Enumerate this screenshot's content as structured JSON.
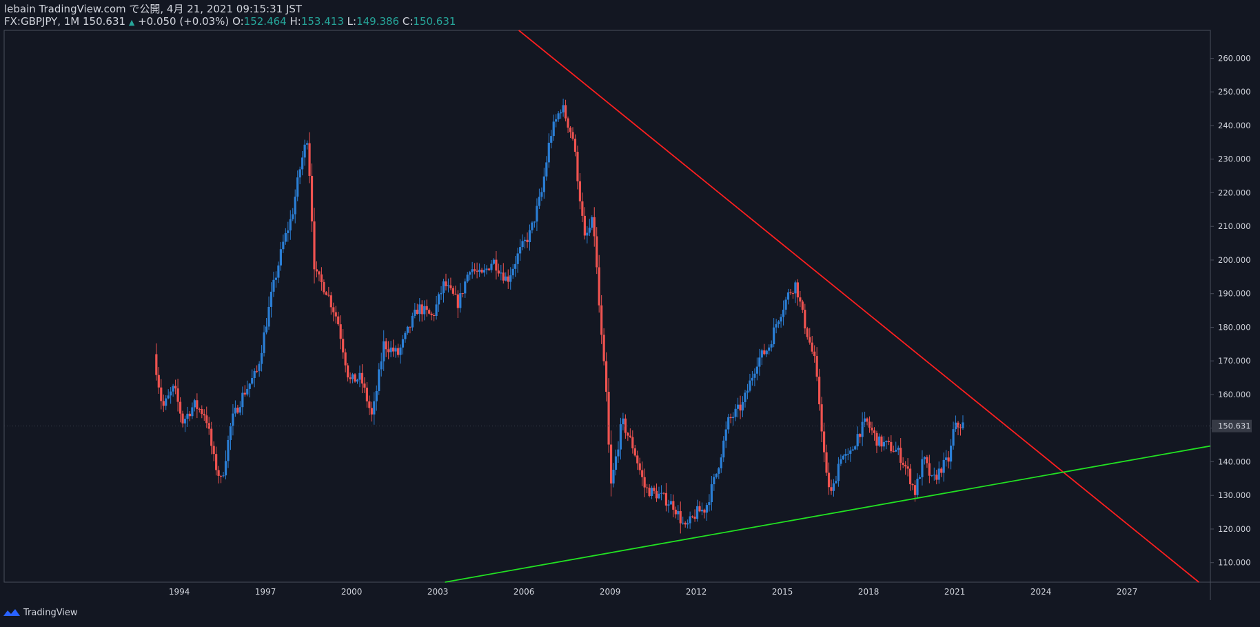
{
  "header": {
    "line1": "lebain TradingView.com で公開, 4月 21, 2021 09:15:31 JST",
    "symbol": "FX:GBPJPY, 1M 150.631",
    "change": "+0.050 (+0.03%)",
    "o_label": "O:",
    "o_value": "152.464",
    "h_label": "H:",
    "h_value": "153.413",
    "l_label": "L:",
    "l_value": "149.386",
    "c_label": "C:",
    "c_value": "150.631"
  },
  "footer": {
    "brand": "TradingView"
  },
  "colors": {
    "background": "#131722",
    "up": "#2b7fd6",
    "down": "#ef5350",
    "resistance": "#ff1f1f",
    "support": "#22e022",
    "price_label_bg": "#363a45"
  },
  "chart_data": {
    "type": "candlestick",
    "interval": "1M",
    "x_unit": "year",
    "xlim": [
      1987.9,
      2029.9
    ],
    "ylim": [
      104.2,
      268.3
    ],
    "x_ticks": [
      {
        "x": 1994,
        "label": "1994"
      },
      {
        "x": 1997,
        "label": "1997"
      },
      {
        "x": 2000,
        "label": "2000"
      },
      {
        "x": 2003,
        "label": "2003"
      },
      {
        "x": 2006,
        "label": "2006"
      },
      {
        "x": 2009,
        "label": "2009"
      },
      {
        "x": 2012,
        "label": "2012"
      },
      {
        "x": 2015,
        "label": "2015"
      },
      {
        "x": 2018,
        "label": "2018"
      },
      {
        "x": 2021,
        "label": "2021"
      },
      {
        "x": 2024,
        "label": "2024"
      },
      {
        "x": 2027,
        "label": "2027"
      }
    ],
    "y_ticks": [
      {
        "y": 110,
        "label": "110.000"
      },
      {
        "y": 120,
        "label": "120.000"
      },
      {
        "y": 130,
        "label": "130.000"
      },
      {
        "y": 140,
        "label": "140.000"
      },
      {
        "y": 150,
        "label": "150.000"
      },
      {
        "y": 160,
        "label": "160.000"
      },
      {
        "y": 170,
        "label": "170.000"
      },
      {
        "y": 180,
        "label": "180.000"
      },
      {
        "y": 190,
        "label": "190.000"
      },
      {
        "y": 200,
        "label": "200.000"
      },
      {
        "y": 210,
        "label": "210.000"
      },
      {
        "y": 220,
        "label": "220.000"
      },
      {
        "y": 230,
        "label": "230.000"
      },
      {
        "y": 240,
        "label": "240.000"
      },
      {
        "y": 250,
        "label": "250.000"
      },
      {
        "y": 260,
        "label": "260.000"
      }
    ],
    "last_price": {
      "value": 150.631,
      "label": "150.631"
    },
    "price_anchors": [
      [
        1993.2,
        172
      ],
      [
        1993.5,
        156
      ],
      [
        1993.9,
        162
      ],
      [
        1994.2,
        152
      ],
      [
        1994.6,
        157
      ],
      [
        1995.0,
        154
      ],
      [
        1995.3,
        140
      ],
      [
        1995.55,
        134
      ],
      [
        1995.9,
        152
      ],
      [
        1996.3,
        160
      ],
      [
        1996.8,
        167
      ],
      [
        1997.3,
        190
      ],
      [
        1997.7,
        205
      ],
      [
        1998.0,
        213
      ],
      [
        1998.3,
        228
      ],
      [
        1998.55,
        237
      ],
      [
        1998.8,
        196
      ],
      [
        1999.2,
        191
      ],
      [
        1999.6,
        182
      ],
      [
        2000.0,
        164
      ],
      [
        2000.4,
        165
      ],
      [
        2000.8,
        153
      ],
      [
        2001.2,
        175
      ],
      [
        2001.7,
        172
      ],
      [
        2002.0,
        178
      ],
      [
        2002.4,
        186
      ],
      [
        2002.9,
        183
      ],
      [
        2003.3,
        193
      ],
      [
        2003.8,
        187
      ],
      [
        2004.2,
        198
      ],
      [
        2004.6,
        195
      ],
      [
        2005.0,
        200
      ],
      [
        2005.5,
        194
      ],
      [
        2005.9,
        202
      ],
      [
        2006.3,
        208
      ],
      [
        2006.7,
        220
      ],
      [
        2007.0,
        237
      ],
      [
        2007.4,
        246
      ],
      [
        2007.8,
        236
      ],
      [
        2008.2,
        206
      ],
      [
        2008.5,
        212
      ],
      [
        2008.75,
        180
      ],
      [
        2008.95,
        160
      ],
      [
        2009.1,
        132
      ],
      [
        2009.5,
        152
      ],
      [
        2009.9,
        144
      ],
      [
        2010.3,
        132
      ],
      [
        2010.8,
        130
      ],
      [
        2011.3,
        127
      ],
      [
        2011.7,
        120
      ],
      [
        2012.1,
        125
      ],
      [
        2012.4,
        126
      ],
      [
        2012.8,
        137
      ],
      [
        2013.2,
        152
      ],
      [
        2013.7,
        157
      ],
      [
        2014.2,
        170
      ],
      [
        2014.6,
        174
      ],
      [
        2014.9,
        182
      ],
      [
        2015.3,
        190
      ],
      [
        2015.55,
        193
      ],
      [
        2015.8,
        183
      ],
      [
        2016.2,
        170
      ],
      [
        2016.4,
        155
      ],
      [
        2016.6,
        136
      ],
      [
        2016.8,
        130
      ],
      [
        2017.1,
        142
      ],
      [
        2017.4,
        141
      ],
      [
        2017.7,
        148
      ],
      [
        2018.0,
        152
      ],
      [
        2018.4,
        146
      ],
      [
        2018.7,
        145
      ],
      [
        2019.1,
        143
      ],
      [
        2019.4,
        138
      ],
      [
        2019.7,
        131
      ],
      [
        2020.0,
        141
      ],
      [
        2020.3,
        134
      ],
      [
        2020.6,
        138
      ],
      [
        2020.9,
        141
      ],
      [
        2021.05,
        150
      ],
      [
        2021.27,
        151
      ]
    ],
    "trendlines": [
      {
        "name": "resistance",
        "points": [
          [
            2005.82,
            268.3
          ],
          [
            2029.5,
            104.2
          ]
        ]
      },
      {
        "name": "support",
        "points": [
          [
            2003.25,
            104.2
          ],
          [
            2029.9,
            144.7
          ]
        ]
      }
    ]
  }
}
